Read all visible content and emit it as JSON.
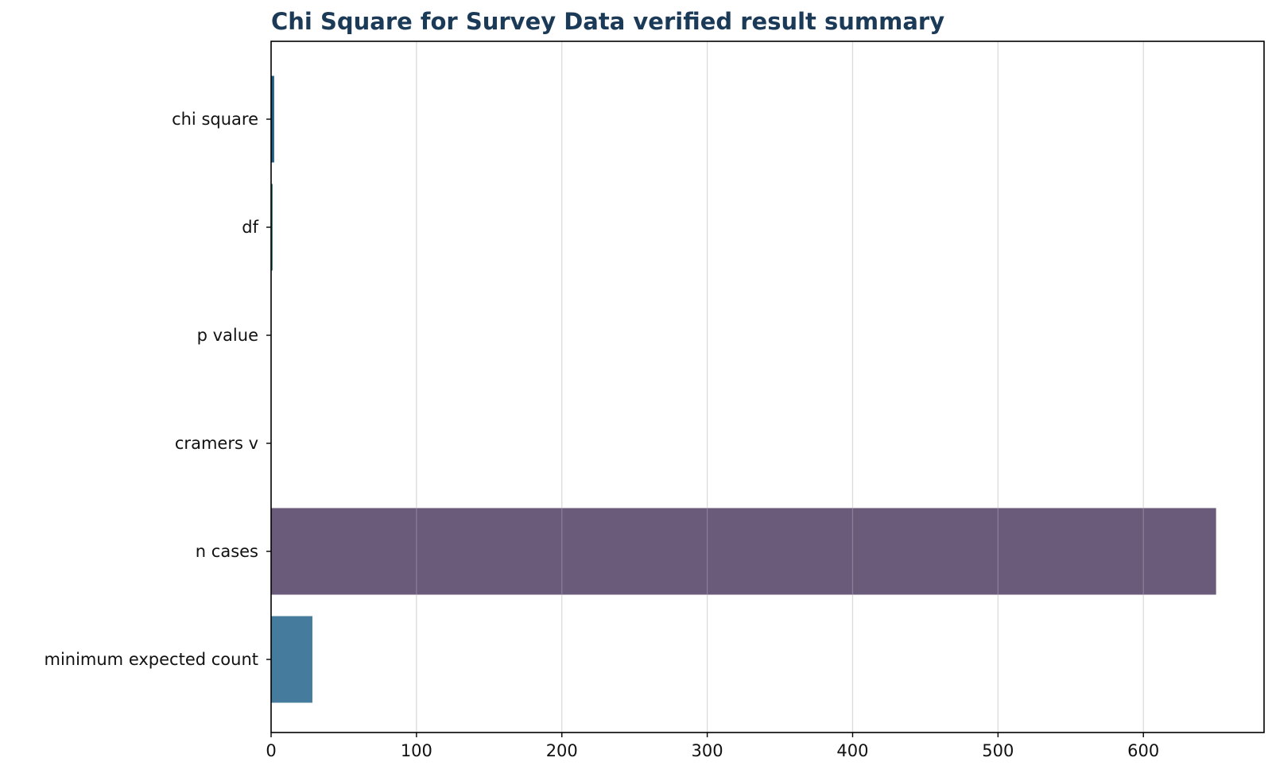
{
  "chart_data": {
    "type": "bar",
    "orientation": "horizontal",
    "title": "Chi Square for Survey Data verified result summary",
    "xlabel": "",
    "ylabel": "",
    "categories": [
      "chi square",
      "df",
      "p value",
      "cramers v",
      "n cases",
      "minimum expected count"
    ],
    "values": [
      2.1,
      1,
      0.15,
      0.06,
      650,
      28.4
    ],
    "bar_colors": [
      "#1f5a85",
      "#1f6e63",
      "#2b2b4a",
      "#3a3a5c",
      "#6b5b7b",
      "#457b9d"
    ],
    "xlim": [
      0,
      683
    ],
    "xticks": [
      0,
      100,
      200,
      300,
      400,
      500,
      600
    ],
    "grid": "x",
    "legend": "none",
    "title_color": "#1b3a57"
  }
}
